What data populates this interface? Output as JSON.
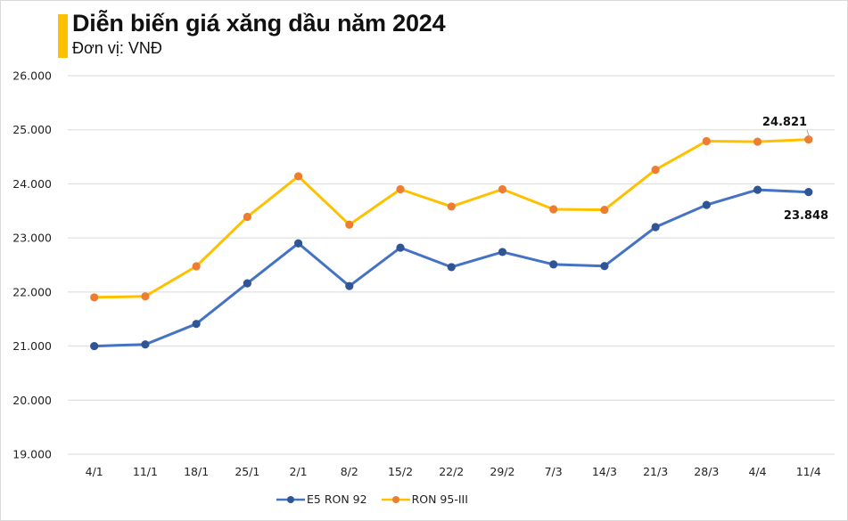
{
  "header": {
    "title": "Diễn biến giá xăng dầu năm 2024",
    "subtitle": "Đơn vị: VNĐ"
  },
  "legend": [
    {
      "name": "E5 RON 92",
      "line_color": "#4472c4",
      "marker_color": "#2f5597"
    },
    {
      "name": "RON 95-III",
      "line_color": "#ffc000",
      "marker_color": "#ed7d31"
    }
  ],
  "annotations": {
    "ron95_last": "24.821",
    "e5_last": "23.848"
  },
  "chart_data": {
    "type": "line",
    "title": "Diễn biến giá xăng dầu năm 2024",
    "subtitle": "Đơn vị: VNĐ",
    "xlabel": "",
    "ylabel": "",
    "categories": [
      "4/1",
      "11/1",
      "18/1",
      "25/1",
      "2/1",
      "8/2",
      "15/2",
      "22/2",
      "29/2",
      "7/3",
      "14/3",
      "21/3",
      "28/3",
      "4/4",
      "11/4"
    ],
    "series": [
      {
        "name": "E5 RON 92",
        "color": "#4472c4",
        "values": [
          21000,
          21030,
          21410,
          22160,
          22900,
          22110,
          22820,
          22460,
          22740,
          22510,
          22480,
          23200,
          23610,
          23890,
          23848
        ]
      },
      {
        "name": "RON 95-III",
        "color": "#ffc000",
        "values": [
          21900,
          21920,
          22475,
          23390,
          24140,
          23245,
          23900,
          23580,
          23900,
          23530,
          23520,
          24260,
          24790,
          24780,
          24821
        ]
      }
    ],
    "yticks": [
      "19.000",
      "20.000",
      "21.000",
      "22.000",
      "23.000",
      "24.000",
      "25.000",
      "26.000"
    ],
    "ylim": [
      19000,
      26000
    ],
    "grid": true,
    "legend_position": "bottom",
    "data_labels": [
      {
        "series": "RON 95-III",
        "category": "11/4",
        "text": "24.821"
      },
      {
        "series": "E5 RON 92",
        "category": "11/4",
        "text": "23.848"
      }
    ]
  }
}
